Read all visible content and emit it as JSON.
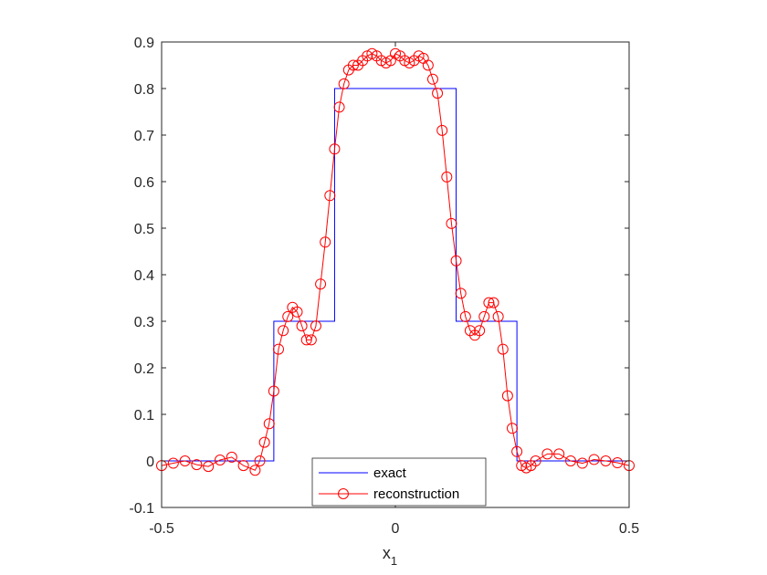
{
  "chart_data": {
    "type": "line",
    "title": "",
    "xlabel": "x",
    "xlabel_subscript": "1",
    "ylabel": "",
    "xlim": [
      -0.5,
      0.5
    ],
    "ylim": [
      -0.1,
      0.9
    ],
    "xticks": [
      -0.5,
      0,
      0.5
    ],
    "xtick_labels": [
      "-0.5",
      "0",
      "0.5"
    ],
    "yticks": [
      -0.1,
      0,
      0.1,
      0.2,
      0.3,
      0.4,
      0.5,
      0.6,
      0.7,
      0.8,
      0.9
    ],
    "ytick_labels": [
      "-0.1",
      "0",
      "0.1",
      "0.2",
      "0.3",
      "0.4",
      "0.5",
      "0.6",
      "0.7",
      "0.8",
      "0.9"
    ],
    "grid": false,
    "legend_position": "bottom-center",
    "series": [
      {
        "name": "exact",
        "color": "#0000ff",
        "marker": "none",
        "x": [
          -0.5,
          -0.26,
          -0.26,
          -0.13,
          -0.13,
          0.13,
          0.13,
          0.26,
          0.26,
          0.5
        ],
        "y": [
          0,
          0,
          0.3,
          0.3,
          0.8,
          0.8,
          0.3,
          0.3,
          0,
          0
        ]
      },
      {
        "name": "reconstruction",
        "color": "#ff0000",
        "marker": "circle",
        "x": [
          -0.5,
          -0.475,
          -0.45,
          -0.425,
          -0.4,
          -0.375,
          -0.35,
          -0.325,
          -0.3,
          -0.29,
          -0.28,
          -0.27,
          -0.26,
          -0.25,
          -0.24,
          -0.23,
          -0.22,
          -0.21,
          -0.2,
          -0.19,
          -0.18,
          -0.17,
          -0.16,
          -0.15,
          -0.14,
          -0.13,
          -0.12,
          -0.11,
          -0.1,
          -0.09,
          -0.08,
          -0.07,
          -0.06,
          -0.05,
          -0.04,
          -0.03,
          -0.02,
          -0.01,
          0,
          0.01,
          0.02,
          0.03,
          0.04,
          0.05,
          0.06,
          0.07,
          0.08,
          0.09,
          0.1,
          0.11,
          0.12,
          0.13,
          0.14,
          0.15,
          0.16,
          0.17,
          0.18,
          0.19,
          0.2,
          0.21,
          0.22,
          0.23,
          0.24,
          0.25,
          0.26,
          0.27,
          0.28,
          0.29,
          0.3,
          0.325,
          0.35,
          0.375,
          0.4,
          0.425,
          0.45,
          0.475,
          0.5
        ],
        "y": [
          -0.01,
          -0.005,
          0.0,
          -0.008,
          -0.012,
          0.002,
          0.008,
          -0.01,
          -0.02,
          0.0,
          0.04,
          0.08,
          0.15,
          0.24,
          0.28,
          0.31,
          0.33,
          0.32,
          0.29,
          0.26,
          0.26,
          0.29,
          0.38,
          0.47,
          0.57,
          0.67,
          0.76,
          0.81,
          0.84,
          0.85,
          0.85,
          0.86,
          0.87,
          0.875,
          0.87,
          0.86,
          0.855,
          0.86,
          0.875,
          0.87,
          0.86,
          0.855,
          0.86,
          0.87,
          0.865,
          0.85,
          0.82,
          0.79,
          0.71,
          0.61,
          0.51,
          0.43,
          0.36,
          0.31,
          0.28,
          0.27,
          0.28,
          0.31,
          0.34,
          0.34,
          0.31,
          0.24,
          0.14,
          0.07,
          0.02,
          -0.01,
          -0.015,
          -0.01,
          0.0,
          0.015,
          0.015,
          0.0,
          -0.005,
          0.003,
          0.0,
          -0.004,
          -0.01
        ]
      }
    ]
  }
}
